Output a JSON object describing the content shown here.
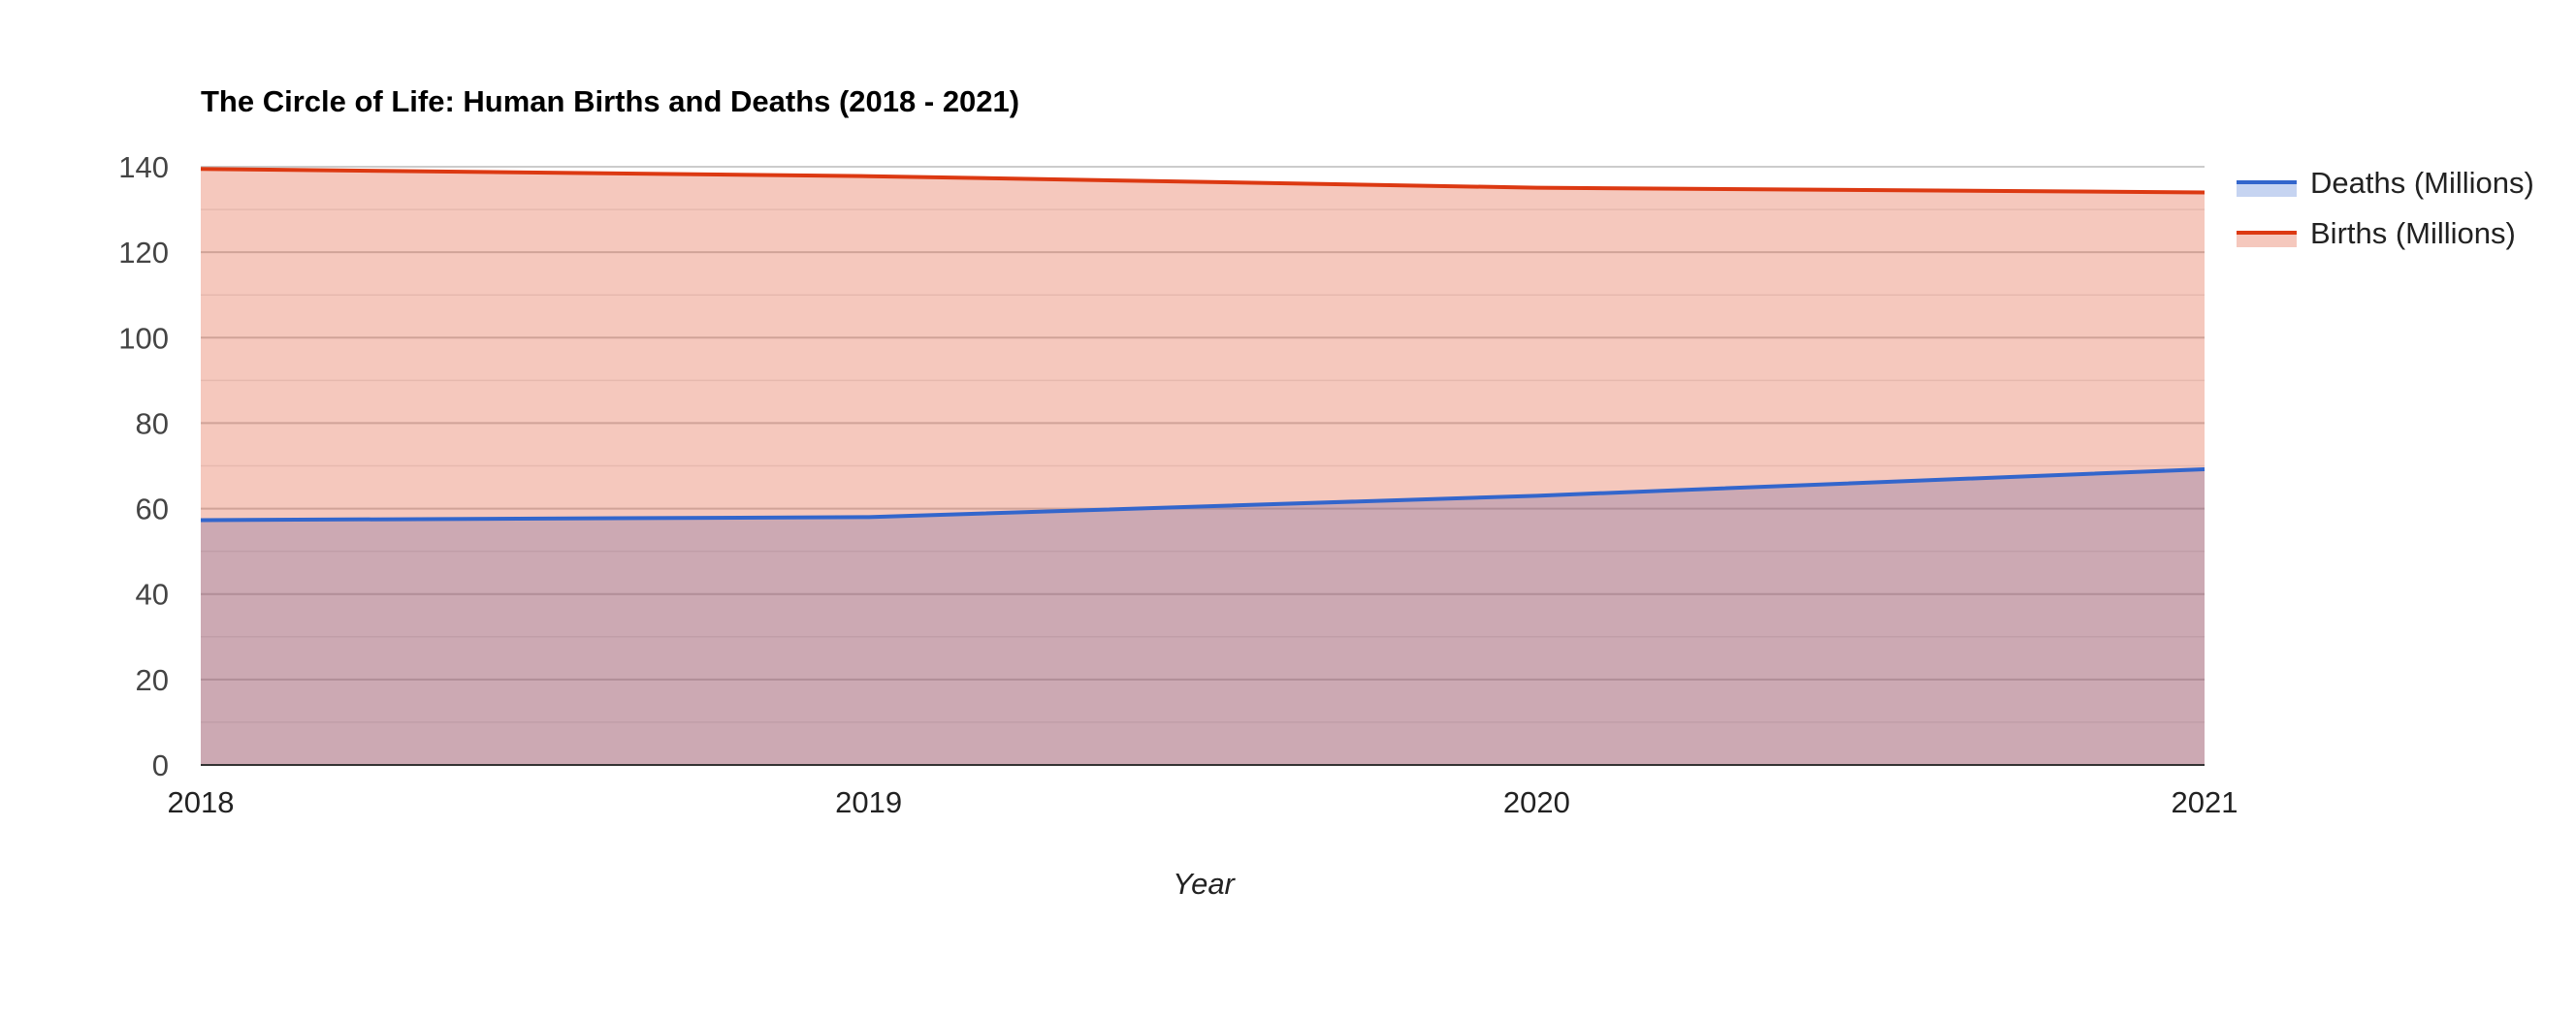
{
  "chart_data": {
    "type": "area",
    "title": "The Circle of Life: Human Births and Deaths (2018 - 2021)",
    "xlabel": "Year",
    "ylabel": "",
    "x": [
      "2018",
      "2019",
      "2020",
      "2021"
    ],
    "ylim": [
      0,
      140
    ],
    "yticks": [
      "0",
      "20",
      "40",
      "60",
      "80",
      "100",
      "120",
      "140"
    ],
    "grid": true,
    "legend_position": "right",
    "series": [
      {
        "name": "Deaths (Millions)",
        "values": [
          57.3,
          58.0,
          63.0,
          69.2
        ],
        "color": "#3366cc"
      },
      {
        "name": "Births (Millions)",
        "values": [
          139.5,
          137.8,
          135.1,
          134.0
        ],
        "color": "#dc3912"
      }
    ]
  }
}
